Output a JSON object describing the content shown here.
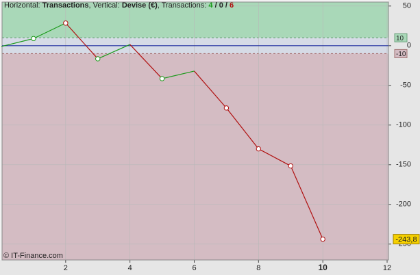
{
  "chart_data": {
    "type": "line",
    "header": {
      "h_label": "Horizontal:",
      "h_value": "Transactions",
      "v_label": ", Vertical:",
      "v_value": "Devise (€)",
      "t_label": ", Transactions:",
      "wins": "4",
      "sep1": "/",
      "even": "0",
      "sep2": "/",
      "losses": "6"
    },
    "footer": "© IT-Finance.com",
    "x": [
      0,
      1,
      2,
      3,
      4,
      5,
      6,
      7,
      8,
      9,
      10
    ],
    "y": [
      -1,
      9,
      28.5,
      -16.5,
      1.5,
      -41.5,
      -32,
      -78.5,
      -130,
      -151.5,
      -243.8
    ],
    "markers": [
      false,
      true,
      true,
      true,
      false,
      true,
      false,
      true,
      true,
      true,
      true
    ],
    "value_labels": [
      null,
      null,
      null,
      null,
      null,
      null,
      null,
      null,
      null,
      null,
      "-243,8"
    ],
    "up_color": "#1a9a1a",
    "down_color": "#b01010",
    "xlim": [
      0,
      12
    ],
    "xticks": [
      2,
      4,
      6,
      8,
      10,
      12
    ],
    "highlight_xtick": 10,
    "ylim": [
      -270,
      55
    ],
    "yticks": [
      50,
      0,
      -50,
      -100,
      -150,
      -200,
      -250
    ],
    "upper_threshold": 10,
    "lower_threshold": -10,
    "upper_zone_color": "#a9d8b8",
    "lower_zone_color": "#d4bcc3",
    "middle_zone_color": "#d6dbe6",
    "zero_line_color": "#2030a0",
    "grid": true
  }
}
